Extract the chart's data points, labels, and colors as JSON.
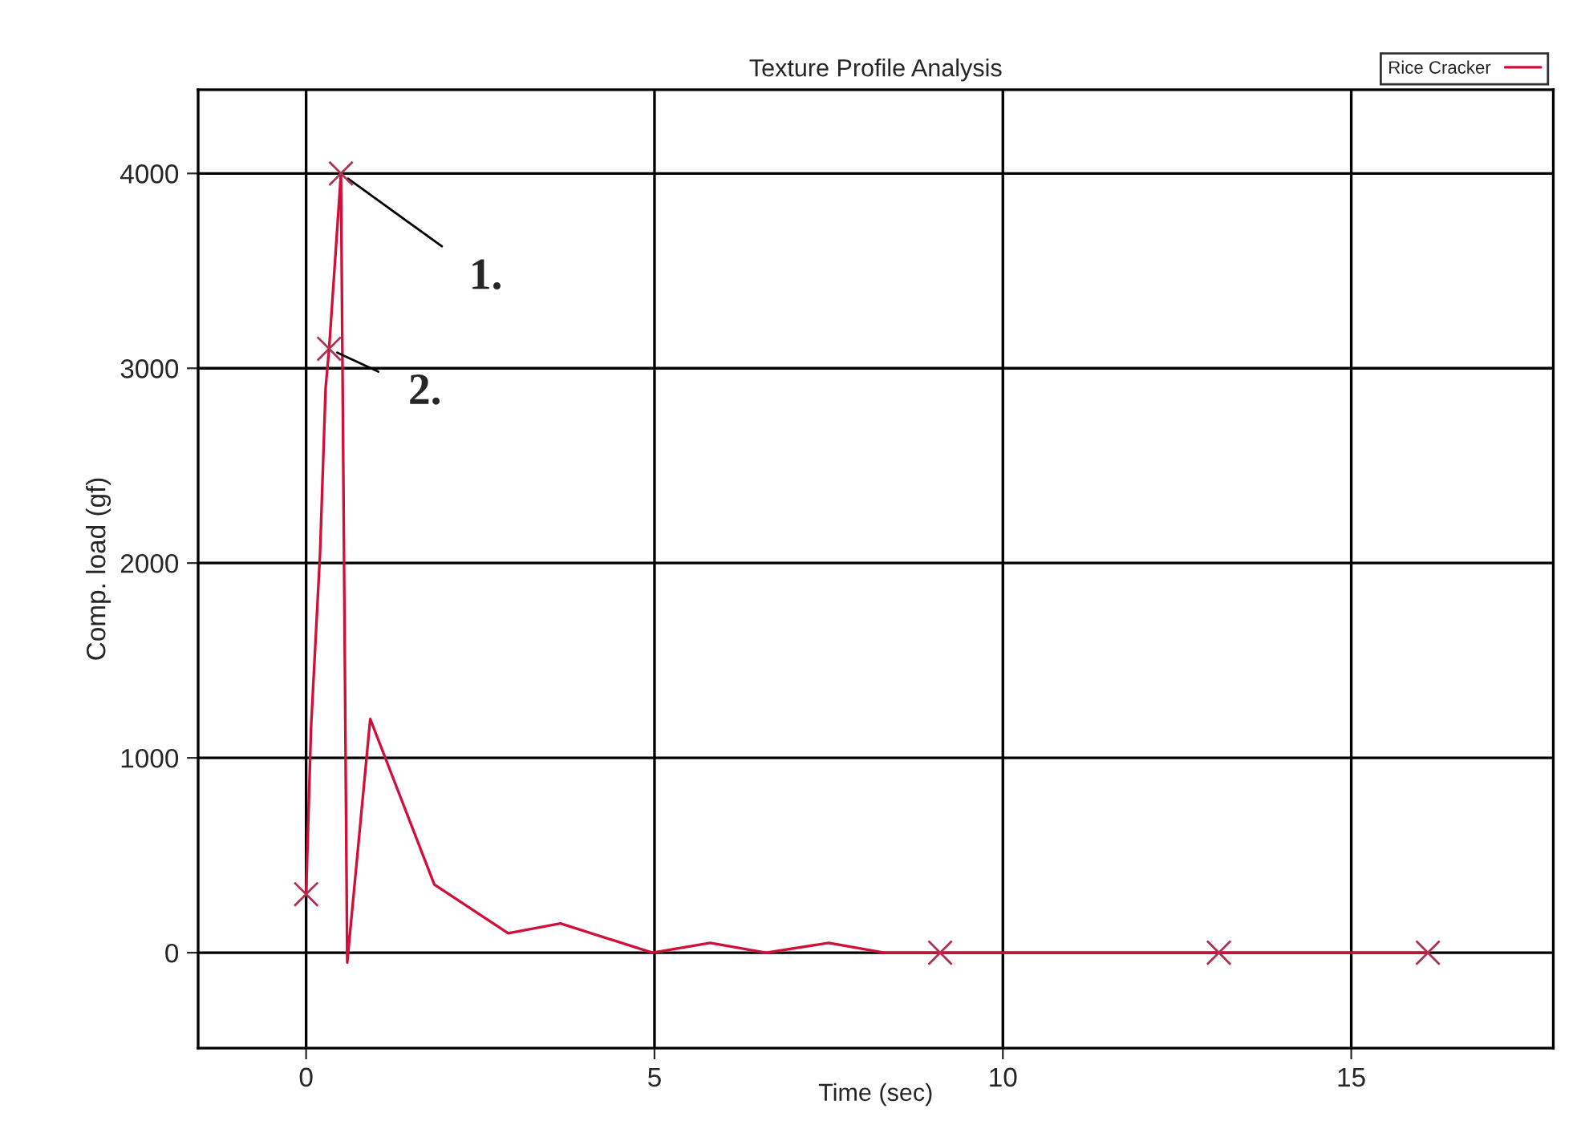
{
  "chart_data": {
    "type": "line",
    "title": "Texture Profile Analysis",
    "xlabel": "Time (sec)",
    "ylabel": "Comp. load (gf)",
    "xlim": [
      -1.55,
      17.9
    ],
    "xticks": [
      0,
      5,
      10,
      15
    ],
    "ylim": [
      -490,
      4430
    ],
    "yticks": [
      0,
      1000,
      2000,
      3000,
      4000
    ],
    "grid": true,
    "legend": "top right",
    "series": [
      {
        "name": "Rice Cracker",
        "color": "#d0103a",
        "marker": "none",
        "x": [
          0,
          0.07,
          0.2,
          0.28,
          0.33,
          0.5,
          0.59,
          0.92,
          1.84,
          2.9,
          3.65,
          4.97,
          5.8,
          6.6,
          7.5,
          8.3,
          9.1,
          13.1,
          15,
          16.1
        ],
        "values": [
          300,
          1150,
          2050,
          2900,
          3100,
          4000,
          -50,
          1200,
          350,
          100,
          150,
          0,
          50,
          0,
          50,
          0,
          0,
          0,
          0,
          0
        ]
      },
      {
        "type": "scatter",
        "color": "#b03050",
        "marker": "cross",
        "x": [
          0,
          0.33,
          0.5,
          9.1,
          13.1,
          16.1
        ],
        "values": [
          300,
          3100,
          4000,
          0,
          0,
          0
        ]
      }
    ],
    "annotations": [
      {
        "text": "1.",
        "x": 0.5,
        "y": 4000
      },
      {
        "text": "2.",
        "x": 0.33,
        "y": 3100
      }
    ]
  }
}
